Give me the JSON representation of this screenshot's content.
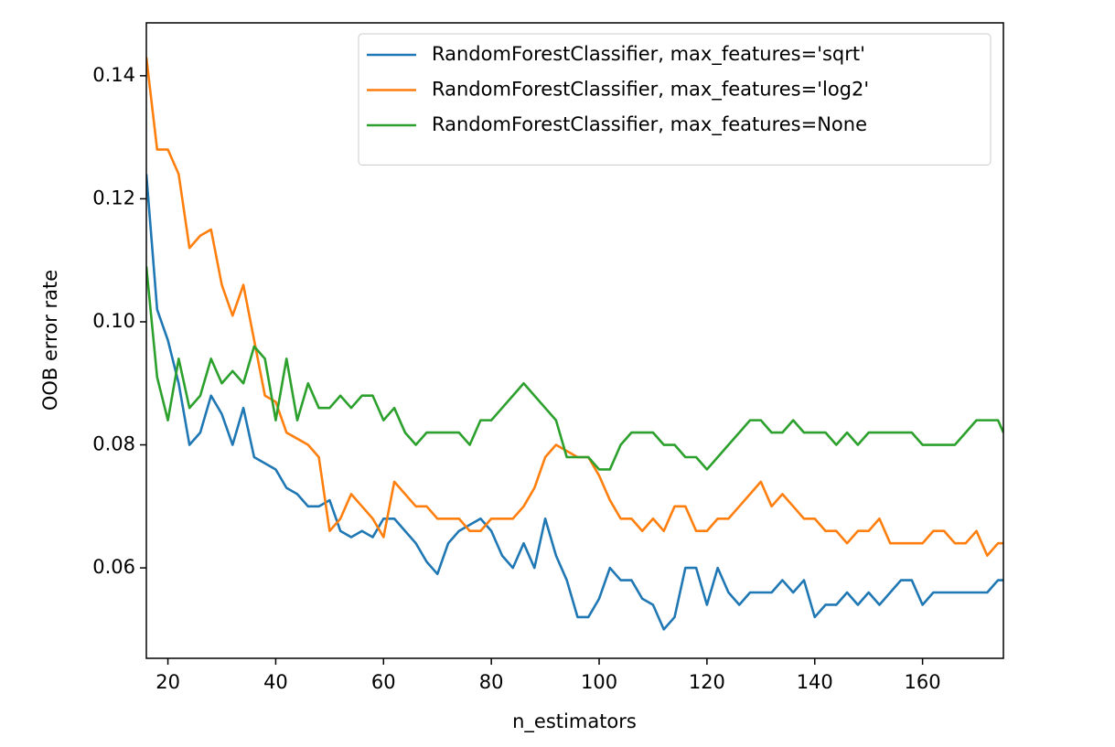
{
  "chart_data": {
    "type": "line",
    "xlabel": "n_estimators",
    "ylabel": "OOB error rate",
    "x": [
      16,
      18,
      20,
      22,
      24,
      26,
      28,
      30,
      32,
      34,
      36,
      38,
      40,
      42,
      44,
      46,
      48,
      50,
      52,
      54,
      56,
      58,
      60,
      62,
      64,
      66,
      68,
      70,
      72,
      74,
      76,
      78,
      80,
      82,
      84,
      86,
      88,
      90,
      92,
      94,
      96,
      98,
      100,
      102,
      104,
      106,
      108,
      110,
      112,
      114,
      116,
      118,
      120,
      122,
      124,
      126,
      128,
      130,
      132,
      134,
      136,
      138,
      140,
      142,
      144,
      146,
      148,
      150,
      152,
      154,
      156,
      158,
      160,
      162,
      164,
      166,
      168,
      170,
      172,
      174,
      175
    ],
    "series": [
      {
        "name": "RandomForestClassifier, max_features='sqrt'",
        "color": "#1f77b4",
        "values": [
          0.124,
          0.102,
          0.097,
          0.09,
          0.08,
          0.082,
          0.088,
          0.085,
          0.08,
          0.086,
          0.078,
          0.077,
          0.076,
          0.073,
          0.072,
          0.07,
          0.07,
          0.071,
          0.066,
          0.065,
          0.066,
          0.065,
          0.068,
          0.068,
          0.066,
          0.064,
          0.061,
          0.059,
          0.064,
          0.066,
          0.067,
          0.068,
          0.066,
          0.062,
          0.06,
          0.064,
          0.06,
          0.068,
          0.062,
          0.058,
          0.052,
          0.052,
          0.055,
          0.06,
          0.058,
          0.058,
          0.055,
          0.054,
          0.05,
          0.052,
          0.06,
          0.06,
          0.054,
          0.06,
          0.056,
          0.054,
          0.056,
          0.056,
          0.056,
          0.058,
          0.056,
          0.058,
          0.052,
          0.054,
          0.054,
          0.056,
          0.054,
          0.056,
          0.054,
          0.056,
          0.058,
          0.058,
          0.054,
          0.056,
          0.056,
          0.056,
          0.056,
          0.056,
          0.056,
          0.058,
          0.058
        ]
      },
      {
        "name": "RandomForestClassifier, max_features='log2'",
        "color": "#ff7f0e",
        "values": [
          0.143,
          0.128,
          0.128,
          0.124,
          0.112,
          0.114,
          0.115,
          0.106,
          0.101,
          0.106,
          0.097,
          0.088,
          0.087,
          0.082,
          0.081,
          0.08,
          0.078,
          0.066,
          0.068,
          0.072,
          0.07,
          0.068,
          0.065,
          0.074,
          0.072,
          0.07,
          0.07,
          0.068,
          0.068,
          0.068,
          0.066,
          0.066,
          0.068,
          0.068,
          0.068,
          0.07,
          0.073,
          0.078,
          0.08,
          0.079,
          0.078,
          0.078,
          0.075,
          0.071,
          0.068,
          0.068,
          0.066,
          0.068,
          0.066,
          0.07,
          0.07,
          0.066,
          0.066,
          0.068,
          0.068,
          0.07,
          0.072,
          0.074,
          0.07,
          0.072,
          0.07,
          0.068,
          0.068,
          0.066,
          0.066,
          0.064,
          0.066,
          0.066,
          0.068,
          0.064,
          0.064,
          0.064,
          0.064,
          0.066,
          0.066,
          0.064,
          0.064,
          0.066,
          0.062,
          0.064,
          0.064
        ]
      },
      {
        "name": "RandomForestClassifier, max_features=None",
        "color": "#2ca02c",
        "values": [
          0.109,
          0.091,
          0.084,
          0.094,
          0.086,
          0.088,
          0.094,
          0.09,
          0.092,
          0.09,
          0.096,
          0.094,
          0.084,
          0.094,
          0.084,
          0.09,
          0.086,
          0.086,
          0.088,
          0.086,
          0.088,
          0.088,
          0.084,
          0.086,
          0.082,
          0.08,
          0.082,
          0.082,
          0.082,
          0.082,
          0.08,
          0.084,
          0.084,
          0.086,
          0.088,
          0.09,
          0.088,
          0.086,
          0.084,
          0.078,
          0.078,
          0.078,
          0.076,
          0.076,
          0.08,
          0.082,
          0.082,
          0.082,
          0.08,
          0.08,
          0.078,
          0.078,
          0.076,
          0.078,
          0.08,
          0.082,
          0.084,
          0.084,
          0.082,
          0.082,
          0.084,
          0.082,
          0.082,
          0.082,
          0.08,
          0.082,
          0.08,
          0.082,
          0.082,
          0.082,
          0.082,
          0.082,
          0.08,
          0.08,
          0.08,
          0.08,
          0.082,
          0.084,
          0.084,
          0.084,
          0.082
        ]
      }
    ],
    "xlim": [
      16,
      175
    ],
    "xticks": [
      20,
      40,
      60,
      80,
      100,
      120,
      140,
      160
    ],
    "ylim": [
      0.0453,
      0.1486
    ],
    "yticks": [
      0.06,
      0.08,
      {
        "value": 0.1,
        "label": "0.10"
      },
      0.12,
      0.14
    ],
    "grid": false,
    "legend": "upper right"
  }
}
